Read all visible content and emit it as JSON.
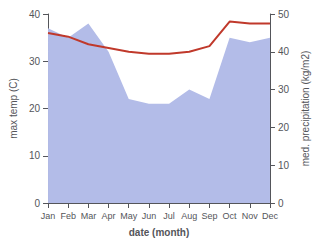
{
  "chart_data": {
    "type": "line",
    "xlabel": "date (month)",
    "ylabel": "max temp (C)",
    "y2label": "med. precipitation (kg/m2)",
    "categories": [
      "Jan",
      "Feb",
      "Mar",
      "Apr",
      "May",
      "Jun",
      "Jul",
      "Aug",
      "Sep",
      "Oct",
      "Nov",
      "Dec"
    ],
    "series": [
      {
        "type": "area",
        "color": "#b3bce8",
        "values": [
          37,
          35,
          38,
          32,
          22,
          21,
          21,
          24,
          22,
          35,
          34,
          35
        ]
      },
      {
        "type": "line",
        "color": "#c0392b",
        "axis": "y2",
        "values": [
          45,
          44,
          42,
          41,
          40,
          39.5,
          39.5,
          40,
          41.5,
          48,
          47.5,
          47.5
        ]
      }
    ],
    "ylim": [
      0,
      40
    ],
    "yticks": [
      0,
      10,
      20,
      30,
      40
    ],
    "y2lim": [
      0,
      50
    ],
    "y2ticks": [
      0,
      10,
      20,
      30,
      40,
      50
    ],
    "grid": false
  }
}
